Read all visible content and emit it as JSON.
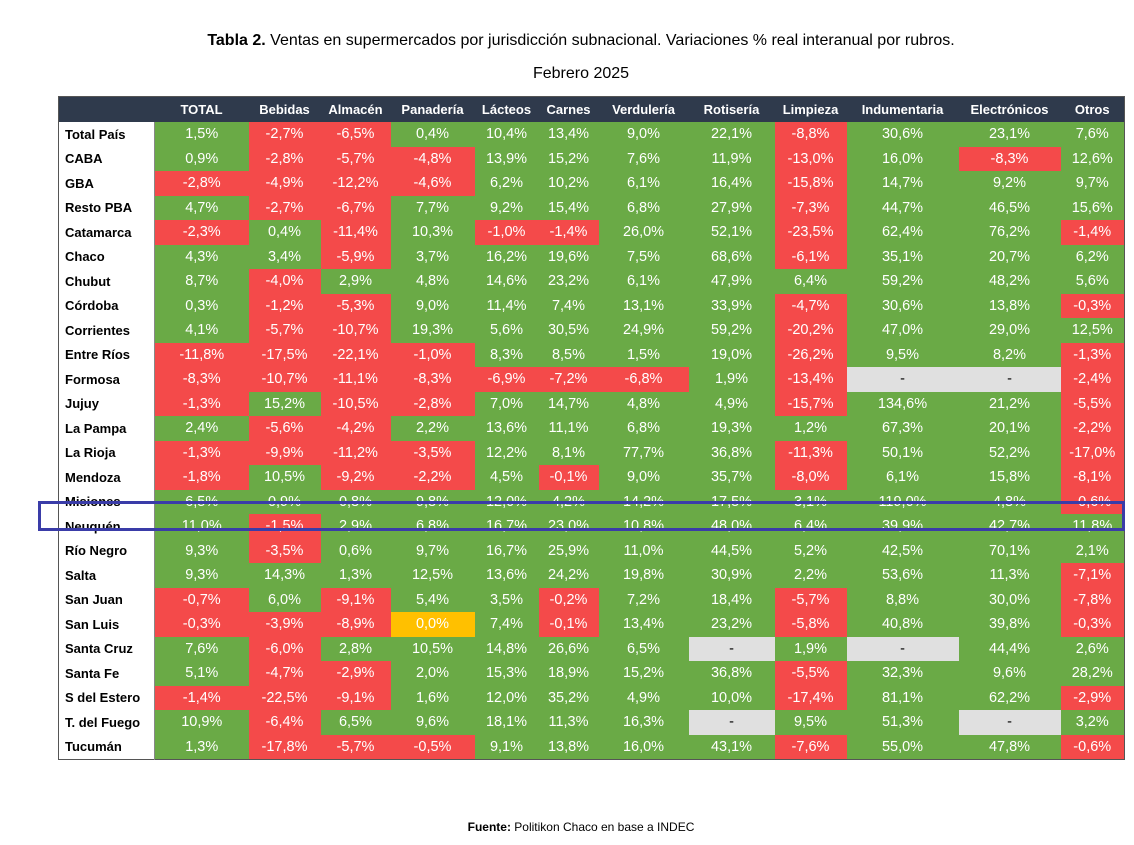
{
  "title": {
    "bold": "Tabla 2.",
    "rest": " Ventas en supermercados por jurisdicción subnacional. Variaciones % real interanual por rubros."
  },
  "subtitle": "Febrero 2025",
  "columns": [
    "",
    "TOTAL",
    "Bebidas",
    "Almacén",
    "Panadería",
    "Lácteos",
    "Carnes",
    "Verdulería",
    "Rotisería",
    "Limpieza",
    "Indumentaria",
    "Electrónicos",
    "Otros"
  ],
  "rows": [
    {
      "name": "Total País",
      "values": [
        "1,5%",
        "-2,7%",
        "-6,5%",
        "0,4%",
        "10,4%",
        "13,4%",
        "9,0%",
        "22,1%",
        "-8,8%",
        "30,6%",
        "23,1%",
        "7,6%"
      ]
    },
    {
      "name": "CABA",
      "values": [
        "0,9%",
        "-2,8%",
        "-5,7%",
        "-4,8%",
        "13,9%",
        "15,2%",
        "7,6%",
        "11,9%",
        "-13,0%",
        "16,0%",
        "-8,3%",
        "12,6%"
      ]
    },
    {
      "name": "GBA",
      "values": [
        "-2,8%",
        "-4,9%",
        "-12,2%",
        "-4,6%",
        "6,2%",
        "10,2%",
        "6,1%",
        "16,4%",
        "-15,8%",
        "14,7%",
        "9,2%",
        "9,7%"
      ]
    },
    {
      "name": "Resto PBA",
      "values": [
        "4,7%",
        "-2,7%",
        "-6,7%",
        "7,7%",
        "9,2%",
        "15,4%",
        "6,8%",
        "27,9%",
        "-7,3%",
        "44,7%",
        "46,5%",
        "15,6%"
      ]
    },
    {
      "name": "Catamarca",
      "values": [
        "-2,3%",
        "0,4%",
        "-11,4%",
        "10,3%",
        "-1,0%",
        "-1,4%",
        "26,0%",
        "52,1%",
        "-23,5%",
        "62,4%",
        "76,2%",
        "-1,4%"
      ]
    },
    {
      "name": "Chaco",
      "values": [
        "4,3%",
        "3,4%",
        "-5,9%",
        "3,7%",
        "16,2%",
        "19,6%",
        "7,5%",
        "68,6%",
        "-6,1%",
        "35,1%",
        "20,7%",
        "6,2%"
      ]
    },
    {
      "name": "Chubut",
      "values": [
        "8,7%",
        "-4,0%",
        "2,9%",
        "4,8%",
        "14,6%",
        "23,2%",
        "6,1%",
        "47,9%",
        "6,4%",
        "59,2%",
        "48,2%",
        "5,6%"
      ]
    },
    {
      "name": "Córdoba",
      "values": [
        "0,3%",
        "-1,2%",
        "-5,3%",
        "9,0%",
        "11,4%",
        "7,4%",
        "13,1%",
        "33,9%",
        "-4,7%",
        "30,6%",
        "13,8%",
        "-0,3%"
      ]
    },
    {
      "name": "Corrientes",
      "values": [
        "4,1%",
        "-5,7%",
        "-10,7%",
        "19,3%",
        "5,6%",
        "30,5%",
        "24,9%",
        "59,2%",
        "-20,2%",
        "47,0%",
        "29,0%",
        "12,5%"
      ]
    },
    {
      "name": "Entre Ríos",
      "values": [
        "-11,8%",
        "-17,5%",
        "-22,1%",
        "-1,0%",
        "8,3%",
        "8,5%",
        "1,5%",
        "19,0%",
        "-26,2%",
        "9,5%",
        "8,2%",
        "-1,3%"
      ]
    },
    {
      "name": "Formosa",
      "values": [
        "-8,3%",
        "-10,7%",
        "-11,1%",
        "-8,3%",
        "-6,9%",
        "-7,2%",
        "-6,8%",
        "1,9%",
        "-13,4%",
        "-",
        "-",
        "-2,4%"
      ]
    },
    {
      "name": "Jujuy",
      "values": [
        "-1,3%",
        "15,2%",
        "-10,5%",
        "-2,8%",
        "7,0%",
        "14,7%",
        "4,8%",
        "4,9%",
        "-15,7%",
        "134,6%",
        "21,2%",
        "-5,5%"
      ]
    },
    {
      "name": "La Pampa",
      "values": [
        "2,4%",
        "-5,6%",
        "-4,2%",
        "2,2%",
        "13,6%",
        "11,1%",
        "6,8%",
        "19,3%",
        "1,2%",
        "67,3%",
        "20,1%",
        "-2,2%"
      ]
    },
    {
      "name": "La Rioja",
      "values": [
        "-1,3%",
        "-9,9%",
        "-11,2%",
        "-3,5%",
        "12,2%",
        "8,1%",
        "77,7%",
        "36,8%",
        "-11,3%",
        "50,1%",
        "52,2%",
        "-17,0%"
      ]
    },
    {
      "name": "Mendoza",
      "values": [
        "-1,8%",
        "10,5%",
        "-9,2%",
        "-2,2%",
        "4,5%",
        "-0,1%",
        "9,0%",
        "35,7%",
        "-8,0%",
        "6,1%",
        "15,8%",
        "-8,1%"
      ]
    },
    {
      "name": "Misiones",
      "values": [
        "6,5%",
        "0,9%",
        "0,8%",
        "9,8%",
        "12,0%",
        "4,2%",
        "14,2%",
        "17,5%",
        "3,1%",
        "119,0%",
        "4,8%",
        "-0,6%"
      ]
    },
    {
      "name": "Neuquén",
      "values": [
        "11,0%",
        "-1,5%",
        "2,9%",
        "6,8%",
        "16,7%",
        "23,0%",
        "10,8%",
        "48,0%",
        "6,4%",
        "39,9%",
        "42,7%",
        "11,8%"
      ]
    },
    {
      "name": "Río Negro",
      "values": [
        "9,3%",
        "-3,5%",
        "0,6%",
        "9,7%",
        "16,7%",
        "25,9%",
        "11,0%",
        "44,5%",
        "5,2%",
        "42,5%",
        "70,1%",
        "2,1%"
      ]
    },
    {
      "name": "Salta",
      "values": [
        "9,3%",
        "14,3%",
        "1,3%",
        "12,5%",
        "13,6%",
        "24,2%",
        "19,8%",
        "30,9%",
        "2,2%",
        "53,6%",
        "11,3%",
        "-7,1%"
      ]
    },
    {
      "name": "San Juan",
      "values": [
        "-0,7%",
        "6,0%",
        "-9,1%",
        "5,4%",
        "3,5%",
        "-0,2%",
        "7,2%",
        "18,4%",
        "-5,7%",
        "8,8%",
        "30,0%",
        "-7,8%"
      ]
    },
    {
      "name": "San Luis",
      "values": [
        "-0,3%",
        "-3,9%",
        "-8,9%",
        "0,0%",
        "7,4%",
        "-0,1%",
        "13,4%",
        "23,2%",
        "-5,8%",
        "40,8%",
        "39,8%",
        "-0,3%"
      ]
    },
    {
      "name": "Santa Cruz",
      "values": [
        "7,6%",
        "-6,0%",
        "2,8%",
        "10,5%",
        "14,8%",
        "26,6%",
        "6,5%",
        "-",
        "1,9%",
        "-",
        "44,4%",
        "2,6%"
      ]
    },
    {
      "name": "Santa Fe",
      "values": [
        "5,1%",
        "-4,7%",
        "-2,9%",
        "2,0%",
        "15,3%",
        "18,9%",
        "15,2%",
        "36,8%",
        "-5,5%",
        "32,3%",
        "9,6%",
        "28,2%"
      ]
    },
    {
      "name": "S del Estero",
      "values": [
        "-1,4%",
        "-22,5%",
        "-9,1%",
        "1,6%",
        "12,0%",
        "35,2%",
        "4,9%",
        "10,0%",
        "-17,4%",
        "81,1%",
        "62,2%",
        "-2,9%"
      ]
    },
    {
      "name": "T. del Fuego",
      "values": [
        "10,9%",
        "-6,4%",
        "6,5%",
        "9,6%",
        "18,1%",
        "11,3%",
        "16,3%",
        "-",
        "9,5%",
        "51,3%",
        "-",
        "3,2%"
      ]
    },
    {
      "name": "Tucumán",
      "values": [
        "1,3%",
        "-17,8%",
        "-5,7%",
        "-0,5%",
        "9,1%",
        "13,8%",
        "16,0%",
        "43,1%",
        "-7,6%",
        "55,0%",
        "47,8%",
        "-0,6%"
      ]
    }
  ],
  "highlighted_row": "Misiones",
  "colors": {
    "positive": "#6aaa46",
    "negative": "#f44a4a",
    "zero": "#ffc000",
    "no_data": "#e0e0e0",
    "header": "#2f3a4c",
    "highlight_border": "#3a3ca8"
  },
  "source": {
    "bold": "Fuente:",
    "rest": " Politikon Chaco en base a INDEC"
  }
}
